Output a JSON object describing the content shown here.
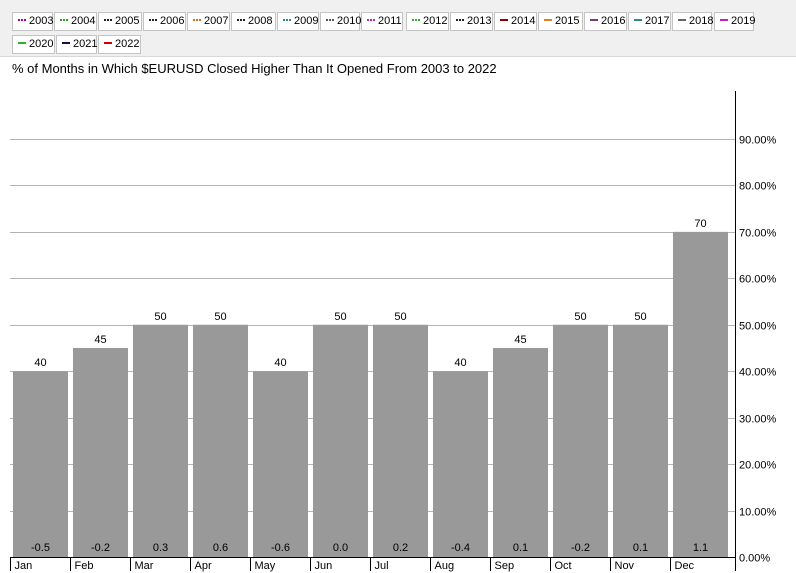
{
  "legend": {
    "items": [
      {
        "label": "2003",
        "color": "#a000a0",
        "style": "dotted"
      },
      {
        "label": "2004",
        "color": "#2a9d2a",
        "style": "dotted"
      },
      {
        "label": "2005",
        "color": "#222222",
        "style": "dotted"
      },
      {
        "label": "2006",
        "color": "#222222",
        "style": "dotted"
      },
      {
        "label": "2007",
        "color": "#d07020",
        "style": "dotted"
      },
      {
        "label": "2008",
        "color": "#222222",
        "style": "dotted"
      },
      {
        "label": "2009",
        "color": "#2a8a8a",
        "style": "dotted"
      },
      {
        "label": "2010",
        "color": "#555555",
        "style": "dotted"
      },
      {
        "label": "2011",
        "color": "#b030b0",
        "style": "dotted"
      },
      {
        "label": "2012",
        "color": "#30b030",
        "style": "dotted"
      },
      {
        "label": "2013",
        "color": "#222222",
        "style": "dotted"
      },
      {
        "label": "2014",
        "color": "#8b0000",
        "style": "solid"
      },
      {
        "label": "2015",
        "color": "#e08020",
        "style": "solid"
      },
      {
        "label": "2016",
        "color": "#7a3a7a",
        "style": "solid"
      },
      {
        "label": "2017",
        "color": "#2a8a8a",
        "style": "solid"
      },
      {
        "label": "2018",
        "color": "#666666",
        "style": "solid"
      },
      {
        "label": "2019",
        "color": "#c020c0",
        "style": "solid"
      },
      {
        "label": "2020",
        "color": "#30b030",
        "style": "solid"
      },
      {
        "label": "2021",
        "color": "#111144",
        "style": "solid"
      },
      {
        "label": "2022",
        "color": "#cc0000",
        "style": "solid"
      }
    ]
  },
  "colors": {
    "bar": "#999999",
    "grid": "#b4b4b4",
    "axis": "#000000"
  },
  "chart_data": {
    "type": "bar",
    "title": "% of Months in Which $EURUSD Closed Higher Than It Opened From 2003 to 2022",
    "categories": [
      "Jan",
      "Feb",
      "Mar",
      "Apr",
      "May",
      "Jun",
      "Jul",
      "Aug",
      "Sep",
      "Oct",
      "Nov",
      "Dec"
    ],
    "values": [
      40,
      45,
      50,
      50,
      40,
      50,
      50,
      40,
      45,
      50,
      50,
      70
    ],
    "value_labels": [
      "40",
      "45",
      "50",
      "50",
      "40",
      "50",
      "50",
      "40",
      "45",
      "50",
      "50",
      "70"
    ],
    "secondary_values": [
      -0.5,
      -0.2,
      0.3,
      0.6,
      -0.6,
      0.0,
      0.2,
      -0.4,
      0.1,
      -0.2,
      0.1,
      1.1
    ],
    "secondary_labels": [
      "-0.5",
      "-0.2",
      "0.3",
      "0.6",
      "-0.6",
      "0.0",
      "0.2",
      "-0.4",
      "0.1",
      "-0.2",
      "0.1",
      "1.1"
    ],
    "ylim": [
      0,
      100
    ],
    "yticks": [
      0,
      10,
      20,
      30,
      40,
      50,
      60,
      70,
      80,
      90
    ],
    "ytick_labels": [
      "0.00%",
      "10.00%",
      "20.00%",
      "30.00%",
      "40.00%",
      "50.00%",
      "60.00%",
      "70.00%",
      "80.00%",
      "90.00%"
    ],
    "y_axis_side": "right",
    "grid": true
  }
}
